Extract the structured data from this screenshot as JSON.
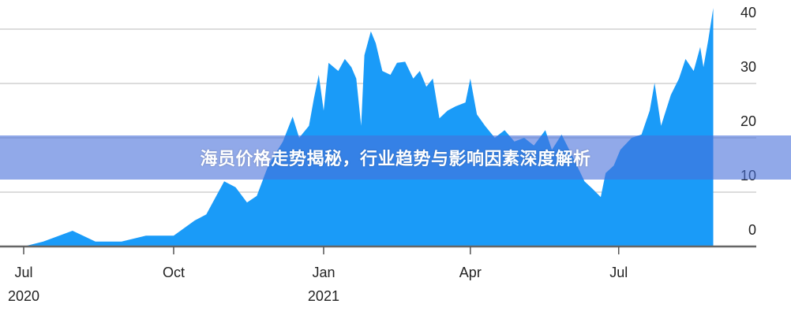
{
  "banner": {
    "title": "海员价格走势揭秘，行业趋势与影响因素深度解析"
  },
  "chart_data": {
    "type": "area",
    "color": "#1a9bf8",
    "grid": true,
    "ylim": [
      0,
      40
    ],
    "yticks": [
      0,
      10,
      20,
      30,
      40
    ],
    "xticks": [
      {
        "date": "2020-07-01",
        "label": "Jul",
        "sublabel": "2020"
      },
      {
        "date": "2020-10-01",
        "label": "Oct",
        "sublabel": ""
      },
      {
        "date": "2021-01-01",
        "label": "Jan",
        "sublabel": "2021"
      },
      {
        "date": "2021-04-01",
        "label": "Apr",
        "sublabel": ""
      },
      {
        "date": "2021-07-01",
        "label": "Jul",
        "sublabel": ""
      }
    ],
    "points": [
      [
        "2020-07-01",
        0
      ],
      [
        "2020-07-13",
        0.9
      ],
      [
        "2020-07-31",
        2.9
      ],
      [
        "2020-08-14",
        0.9
      ],
      [
        "2020-08-30",
        0.9
      ],
      [
        "2020-09-14",
        2
      ],
      [
        "2020-10-01",
        2
      ],
      [
        "2020-10-14",
        4.8
      ],
      [
        "2020-10-21",
        5.9
      ],
      [
        "2020-11-01",
        12
      ],
      [
        "2020-11-08",
        10.9
      ],
      [
        "2020-11-15",
        8.1
      ],
      [
        "2020-11-21",
        9.3
      ],
      [
        "2020-11-28",
        14.9
      ],
      [
        "2020-12-07",
        19.3
      ],
      [
        "2020-12-13",
        23.9
      ],
      [
        "2020-12-17",
        20
      ],
      [
        "2020-12-23",
        22.2
      ],
      [
        "2020-12-26",
        27.2
      ],
      [
        "2020-12-29",
        31.6
      ],
      [
        "2021-01-01",
        25
      ],
      [
        "2021-01-04",
        33.8
      ],
      [
        "2021-01-10",
        32.3
      ],
      [
        "2021-01-14",
        34.5
      ],
      [
        "2021-01-18",
        33
      ],
      [
        "2021-01-21",
        30.9
      ],
      [
        "2021-01-24",
        22.2
      ],
      [
        "2021-01-26",
        35.2
      ],
      [
        "2021-01-30",
        39.6
      ],
      [
        "2021-02-02",
        37.4
      ],
      [
        "2021-02-06",
        32.3
      ],
      [
        "2021-02-11",
        31.6
      ],
      [
        "2021-02-15",
        33.8
      ],
      [
        "2021-02-20",
        34
      ],
      [
        "2021-02-25",
        30.9
      ],
      [
        "2021-03-01",
        32.3
      ],
      [
        "2021-03-05",
        29.4
      ],
      [
        "2021-03-09",
        30.9
      ],
      [
        "2021-03-13",
        23.6
      ],
      [
        "2021-03-18",
        25
      ],
      [
        "2021-03-23",
        25.8
      ],
      [
        "2021-03-29",
        26.5
      ],
      [
        "2021-04-01",
        30.9
      ],
      [
        "2021-04-05",
        24.3
      ],
      [
        "2021-04-10",
        22.2
      ],
      [
        "2021-04-16",
        20
      ],
      [
        "2021-04-22",
        21.4
      ],
      [
        "2021-04-28",
        19.3
      ],
      [
        "2021-05-04",
        20
      ],
      [
        "2021-05-10",
        18.6
      ],
      [
        "2021-05-17",
        21.4
      ],
      [
        "2021-05-21",
        17.8
      ],
      [
        "2021-05-27",
        20.6
      ],
      [
        "2021-06-03",
        16.4
      ],
      [
        "2021-06-10",
        12
      ],
      [
        "2021-06-15",
        10.6
      ],
      [
        "2021-06-20",
        9.1
      ],
      [
        "2021-06-23",
        13.5
      ],
      [
        "2021-06-28",
        14.9
      ],
      [
        "2021-07-02",
        17.8
      ],
      [
        "2021-07-09",
        20
      ],
      [
        "2021-07-15",
        20.6
      ],
      [
        "2021-07-20",
        25
      ],
      [
        "2021-07-23",
        30.1
      ],
      [
        "2021-07-27",
        22.2
      ],
      [
        "2021-08-02",
        27.9
      ],
      [
        "2021-08-07",
        30.9
      ],
      [
        "2021-08-11",
        34.5
      ],
      [
        "2021-08-16",
        32.3
      ],
      [
        "2021-08-20",
        36.7
      ],
      [
        "2021-08-22",
        33
      ],
      [
        "2021-08-25",
        38.1
      ],
      [
        "2021-08-28",
        43.9
      ]
    ]
  }
}
